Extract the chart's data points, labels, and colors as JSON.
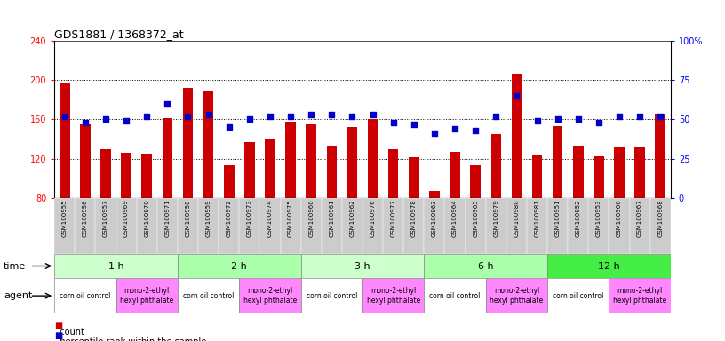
{
  "title": "GDS1881 / 1368372_at",
  "samples": [
    "GSM100955",
    "GSM100956",
    "GSM100957",
    "GSM100969",
    "GSM100970",
    "GSM100971",
    "GSM100958",
    "GSM100959",
    "GSM100972",
    "GSM100973",
    "GSM100974",
    "GSM100975",
    "GSM100960",
    "GSM100961",
    "GSM100962",
    "GSM100976",
    "GSM100977",
    "GSM100978",
    "GSM100963",
    "GSM100964",
    "GSM100965",
    "GSM100979",
    "GSM100980",
    "GSM100981",
    "GSM100951",
    "GSM100952",
    "GSM100953",
    "GSM100966",
    "GSM100967",
    "GSM100968"
  ],
  "counts": [
    197,
    155,
    130,
    126,
    125,
    161,
    192,
    188,
    113,
    137,
    140,
    158,
    155,
    133,
    152,
    160,
    130,
    121,
    87,
    127,
    113,
    145,
    207,
    124,
    153,
    133,
    122,
    131,
    131,
    166
  ],
  "percentiles": [
    52,
    48,
    50,
    49,
    52,
    60,
    52,
    53,
    45,
    50,
    52,
    52,
    53,
    53,
    52,
    53,
    48,
    47,
    41,
    44,
    43,
    52,
    65,
    49,
    50,
    50,
    48,
    52,
    52,
    52
  ],
  "time_groups": [
    {
      "label": "1 h",
      "start": 0,
      "end": 6,
      "color": "#ccffcc"
    },
    {
      "label": "2 h",
      "start": 6,
      "end": 12,
      "color": "#aaffaa"
    },
    {
      "label": "3 h",
      "start": 12,
      "end": 18,
      "color": "#ccffcc"
    },
    {
      "label": "6 h",
      "start": 18,
      "end": 24,
      "color": "#aaffaa"
    },
    {
      "label": "12 h",
      "start": 24,
      "end": 30,
      "color": "#44ee44"
    }
  ],
  "agent_groups": [
    {
      "label": "corn oil control",
      "start": 0,
      "end": 3,
      "color": "#ffffff"
    },
    {
      "label": "mono-2-ethyl\nhexyl phthalate",
      "start": 3,
      "end": 6,
      "color": "#ff88ff"
    },
    {
      "label": "corn oil control",
      "start": 6,
      "end": 9,
      "color": "#ffffff"
    },
    {
      "label": "mono-2-ethyl\nhexyl phthalate",
      "start": 9,
      "end": 12,
      "color": "#ff88ff"
    },
    {
      "label": "corn oil control",
      "start": 12,
      "end": 15,
      "color": "#ffffff"
    },
    {
      "label": "mono-2-ethyl\nhexyl phthalate",
      "start": 15,
      "end": 18,
      "color": "#ff88ff"
    },
    {
      "label": "corn oil control",
      "start": 18,
      "end": 21,
      "color": "#ffffff"
    },
    {
      "label": "mono-2-ethyl\nhexyl phthalate",
      "start": 21,
      "end": 24,
      "color": "#ff88ff"
    },
    {
      "label": "corn oil control",
      "start": 24,
      "end": 27,
      "color": "#ffffff"
    },
    {
      "label": "mono-2-ethyl\nhexyl phthalate",
      "start": 27,
      "end": 30,
      "color": "#ff88ff"
    }
  ],
  "ylim_left": [
    80,
    240
  ],
  "ylim_right": [
    0,
    100
  ],
  "yticks_left": [
    80,
    120,
    160,
    200,
    240
  ],
  "yticks_right": [
    0,
    25,
    50,
    75,
    100
  ],
  "hlines": [
    120,
    160,
    200
  ],
  "bar_color": "#cc0000",
  "dot_color": "#0000cc",
  "bar_width": 0.5,
  "dot_size": 22,
  "chart_bg": "#ffffff",
  "xtick_bg": "#cccccc"
}
